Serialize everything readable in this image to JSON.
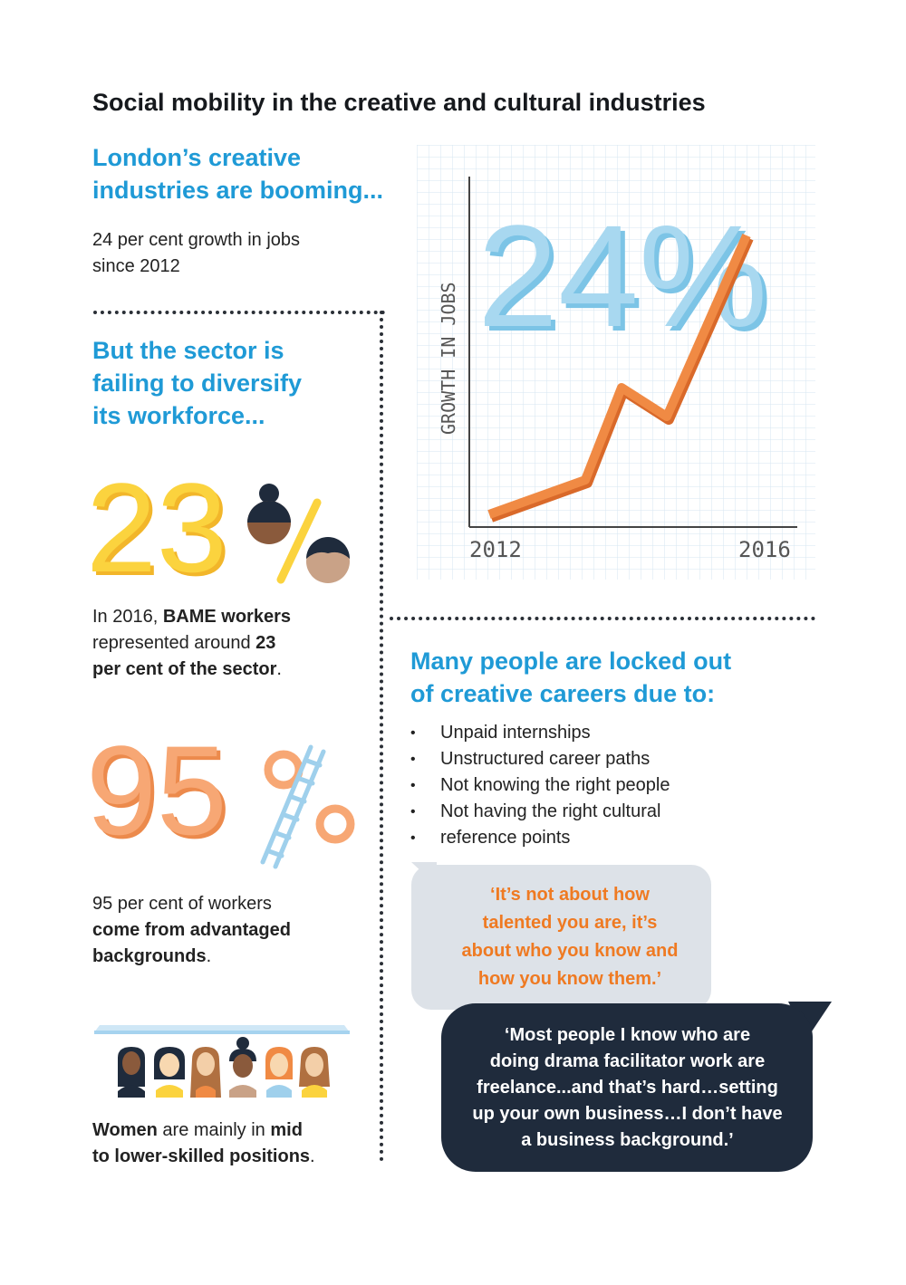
{
  "title": "Social mobility in the creative and cultural industries",
  "section1": {
    "heading_line1": "London’s creative",
    "heading_line2": "industries are booming...",
    "text_line1": "24 per cent growth in jobs",
    "text_line2": "since 2012"
  },
  "section2": {
    "heading_line1": "But the sector is",
    "heading_line2": "failing to diversify",
    "heading_line3": "its workforce...",
    "big_number": "23%",
    "text_prefix": "In 2016, ",
    "text_bold1": "BAME workers",
    "text_mid": "represented around ",
    "text_bold2": "23",
    "text_bold3": "per cent of the sector",
    "text_end": "."
  },
  "section3": {
    "big_number": "95%",
    "text_line1": "95 per cent of workers",
    "text_bold1": "come from advantaged",
    "text_bold2": "backgrounds",
    "text_end": "."
  },
  "section4": {
    "text_bold1": "Women",
    "text_mid1": " are mainly in ",
    "text_bold2": "mid",
    "text_bold3": "to lower-skilled positions",
    "text_end": "."
  },
  "growth_chart": {
    "big_label": "24%",
    "y_label": "GROWTH IN JOBS",
    "x_start": "2012",
    "x_end": "2016",
    "colors": {
      "line": "#f08a44",
      "big_label": "#a8d8f0",
      "grid": "#d6e6f2"
    }
  },
  "section5": {
    "heading_line1": "Many people are locked out",
    "heading_line2": "of creative careers due to:",
    "bullets": [
      "Unpaid internships",
      "Unstructured career paths",
      "Not knowing the right people",
      "Not having the right cultural",
      "reference points"
    ]
  },
  "quote1": {
    "line1": "‘It’s not about how",
    "line2": "talented you are, it’s",
    "line3": "about who you know and",
    "line4": "how you know them.’"
  },
  "quote2": {
    "line1": "‘Most people I know who are",
    "line2": "doing drama facilitator work are",
    "line3": "freelance...and that’s hard…setting",
    "line4": "up your own business…I don’t have",
    "line5": "a business background.’"
  },
  "colors": {
    "blue_heading": "#1f9ad6",
    "yellow": "#f9c93a",
    "orange": "#f4a06a",
    "quote_orange": "#ef7a22",
    "dark_navy": "#1f2b3c"
  }
}
